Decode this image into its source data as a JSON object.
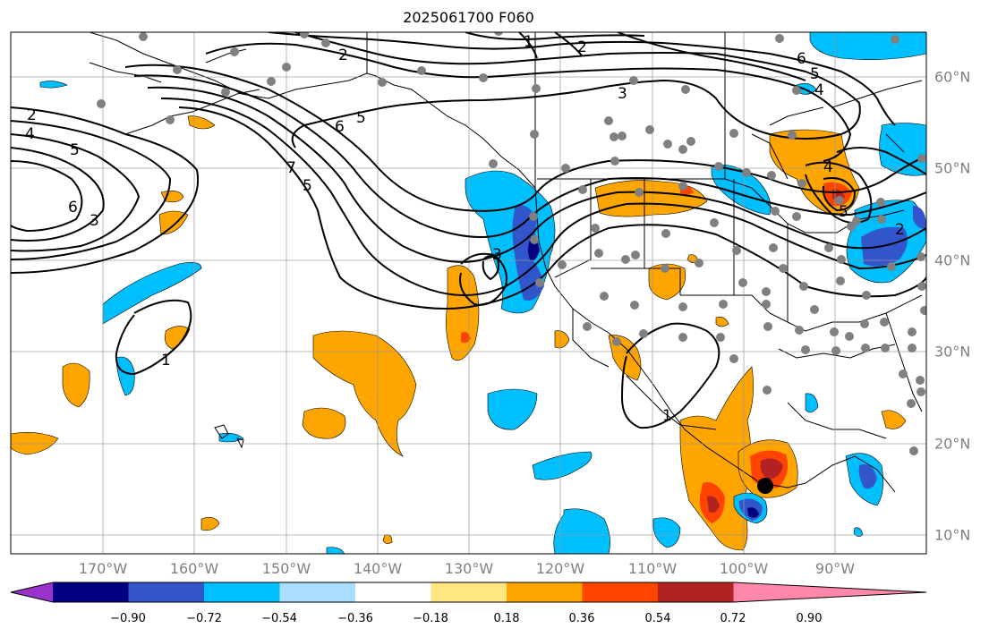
{
  "title": "2025061700 F060",
  "lon_labels": [
    "170°W",
    "160°W",
    "150°W",
    "140°W",
    "130°W",
    "120°W",
    "110°W",
    "100°W",
    "90°W"
  ],
  "lat_labels": [
    "60°N",
    "50°N",
    "40°N",
    "30°N",
    "20°N",
    "10°N"
  ],
  "colorbar": {
    "ticks": [
      "−0.90",
      "−0.72",
      "−0.54",
      "−0.36",
      "−0.18",
      "0.18",
      "0.36",
      "0.54",
      "0.72",
      "0.90"
    ],
    "colors": [
      "#9933cc",
      "#000080",
      "#3355cc",
      "#00bfff",
      "#aaddff",
      "#ffffff",
      "#ffe680",
      "#ffa500",
      "#ff4400",
      "#b22222",
      "#ff88aa"
    ]
  },
  "contour_labels": [
    "2",
    "3",
    "4",
    "5",
    "6",
    "1"
  ],
  "map_extent": {
    "lon": [
      -180,
      -80
    ],
    "lat": [
      8,
      66
    ]
  },
  "colors": {
    "grid": "#999999",
    "coast": "#000000",
    "station": "#808080",
    "storm": "#000000"
  }
}
